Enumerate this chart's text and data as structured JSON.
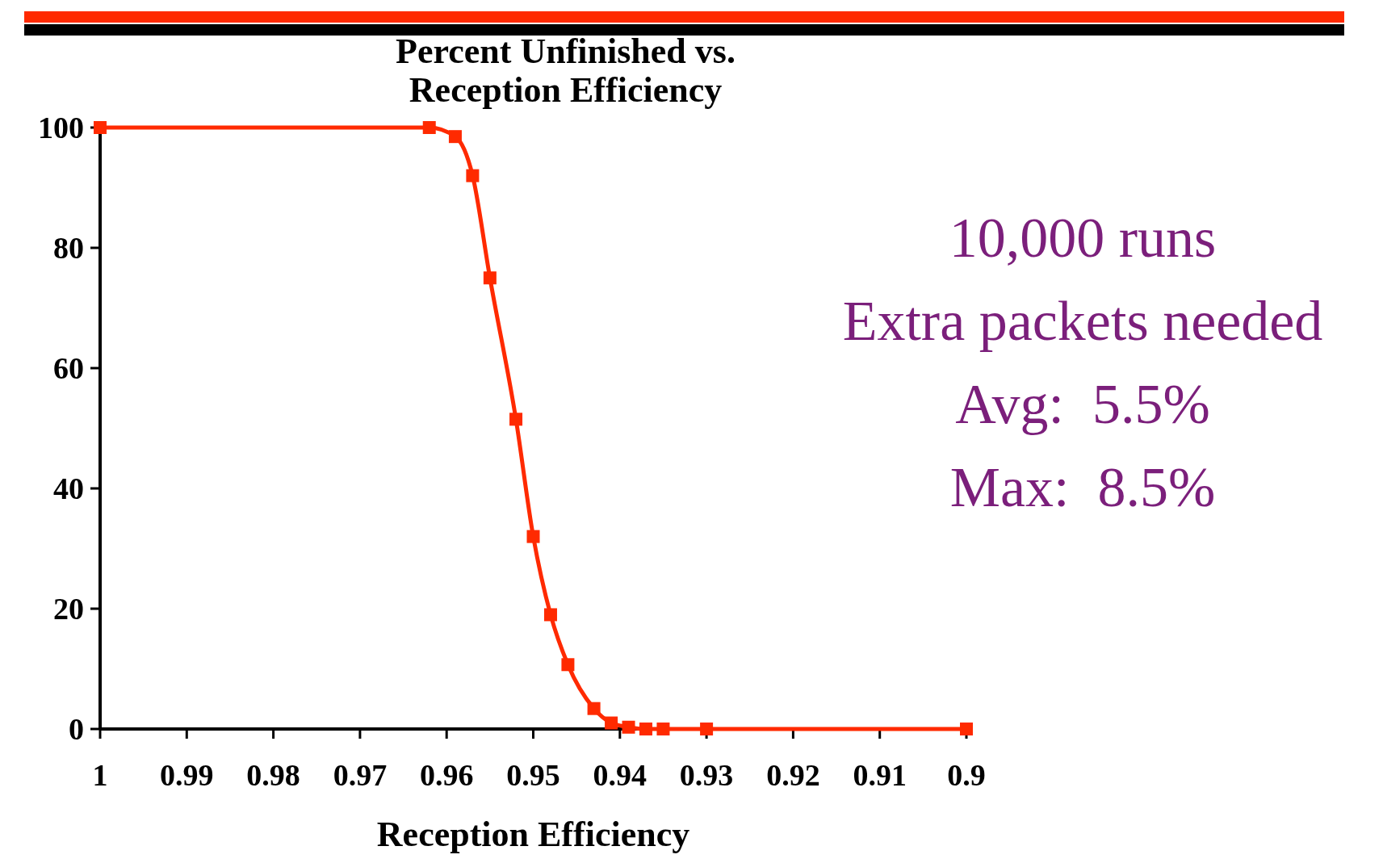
{
  "chart_data": {
    "type": "line",
    "title": "Percent Unfinished vs. Reception Efficiency",
    "xlabel": "Reception Efficiency",
    "x": [
      1,
      0.962,
      0.959,
      0.957,
      0.955,
      0.952,
      0.95,
      0.948,
      0.946,
      0.943,
      0.941,
      0.939,
      0.937,
      0.935,
      0.93,
      0.9
    ],
    "series": [
      {
        "color": "#ff2a00",
        "values": [
          100,
          100,
          98.5,
          92,
          75,
          51.5,
          32,
          19,
          10.7,
          3.4,
          1,
          0.3,
          0,
          0,
          0,
          0
        ]
      }
    ],
    "xlim": [
      1,
      0.9
    ],
    "xticks": [
      1,
      0.99,
      0.98,
      0.97,
      0.96,
      0.95,
      0.94,
      0.93,
      0.92,
      0.91,
      0.9
    ],
    "ylim": [
      0,
      100
    ],
    "yticks": [
      0,
      20,
      40,
      60,
      80,
      100
    ],
    "annotations": [
      "10,000 runs",
      "Extra packets needed",
      "Avg:  5.5%",
      "Max:  8.5%"
    ],
    "marker": "square",
    "line_style": "solid",
    "grid": false
  }
}
